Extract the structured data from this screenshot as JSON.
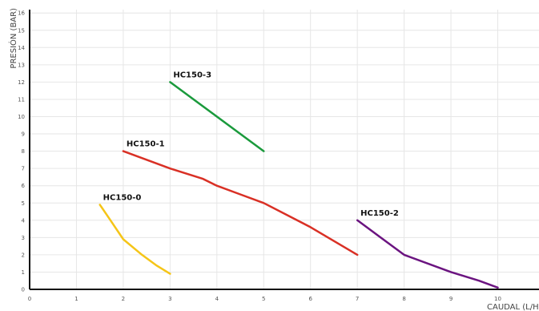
{
  "chart_data": {
    "type": "line",
    "title": "",
    "xlabel": "CAUDAL (L/H)",
    "ylabel": "PRESIÓN (BAR)",
    "xlim": [
      0,
      11
    ],
    "ylim": [
      0,
      16
    ],
    "x_ticks": [
      "0",
      "1",
      "2",
      "3",
      "4",
      "5",
      "6",
      "7",
      "8",
      "9",
      "10"
    ],
    "y_ticks": [
      "0",
      "1",
      "2",
      "3",
      "4",
      "5",
      "6",
      "7",
      "8",
      "9",
      "10",
      "11",
      "12",
      "13",
      "14",
      "15",
      "16"
    ],
    "grid": true,
    "series": [
      {
        "name": "HC150-0",
        "color": "#f5c518",
        "points": [
          [
            1.5,
            4.9
          ],
          [
            1.7,
            4.1
          ],
          [
            2.0,
            2.9
          ],
          [
            2.4,
            2.0
          ],
          [
            2.7,
            1.4
          ],
          [
            3.0,
            0.9
          ]
        ]
      },
      {
        "name": "HC150-1",
        "color": "#d93025",
        "points": [
          [
            2.0,
            8.0
          ],
          [
            3.0,
            7.0
          ],
          [
            3.7,
            6.4
          ],
          [
            4.0,
            6.0
          ],
          [
            4.5,
            5.5
          ],
          [
            5.0,
            5.0
          ],
          [
            6.0,
            3.6
          ],
          [
            7.0,
            2.0
          ]
        ]
      },
      {
        "name": "HC150-3",
        "color": "#1a9a3c",
        "points": [
          [
            3.0,
            12.0
          ],
          [
            5.0,
            8.0
          ]
        ]
      },
      {
        "name": "HC150-2",
        "color": "#6b1480",
        "points": [
          [
            7.0,
            4.0
          ],
          [
            7.5,
            3.0
          ],
          [
            8.0,
            2.0
          ],
          [
            9.0,
            1.0
          ],
          [
            9.6,
            0.5
          ],
          [
            10.0,
            0.1
          ]
        ]
      }
    ]
  }
}
